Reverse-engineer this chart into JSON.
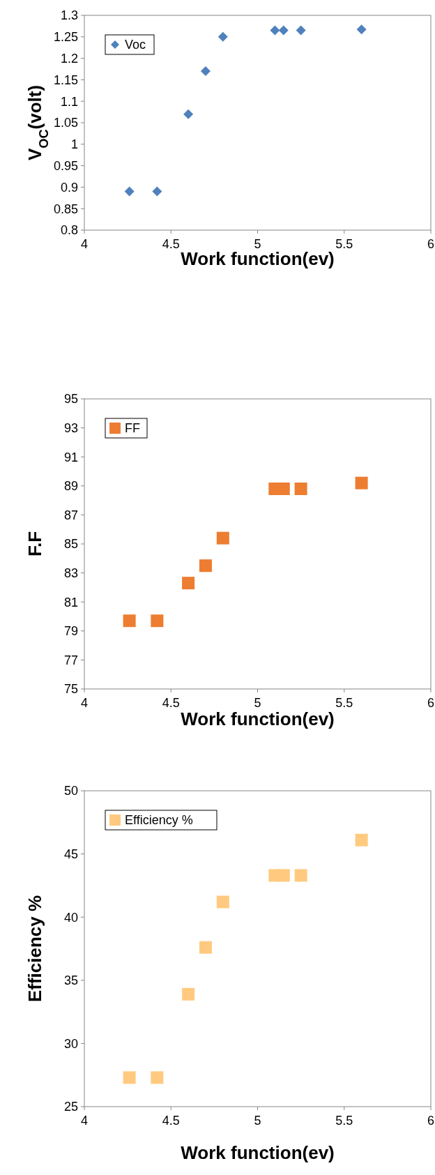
{
  "chart_data": [
    {
      "type": "scatter",
      "xlabel": "Work function(ev)",
      "ylabel": "V$_{OC}$(volt)",
      "x": [
        4.26,
        4.42,
        4.6,
        4.7,
        4.8,
        5.1,
        5.15,
        5.25,
        5.6
      ],
      "xlim": [
        4,
        6
      ],
      "xticks": [
        4,
        4.5,
        5,
        5.5,
        6
      ],
      "ylim": [
        0.8,
        1.3
      ],
      "yticks": [
        0.8,
        0.85,
        0.9,
        0.95,
        1,
        1.05,
        1.1,
        1.15,
        1.2,
        1.25,
        1.3
      ],
      "marker": "diamond",
      "legend": "top left",
      "series": [
        {
          "name": "Voc",
          "color": "#4f81bd",
          "values": [
            0.89,
            0.89,
            1.07,
            1.17,
            1.25,
            1.265,
            1.265,
            1.265,
            1.267
          ]
        }
      ]
    },
    {
      "type": "scatter",
      "xlabel": "Work function(ev)",
      "ylabel": "F.F",
      "x": [
        4.26,
        4.42,
        4.6,
        4.7,
        4.8,
        5.1,
        5.15,
        5.25,
        5.6
      ],
      "xlim": [
        4,
        6
      ],
      "xticks": [
        4,
        4.5,
        5,
        5.5,
        6
      ],
      "ylim": [
        75,
        95
      ],
      "yticks": [
        75,
        77,
        79,
        81,
        83,
        85,
        87,
        89,
        91,
        93,
        95
      ],
      "marker": "square",
      "legend": "top left",
      "series": [
        {
          "name": "FF",
          "color": "#ed7d31",
          "values": [
            79.7,
            79.7,
            82.3,
            83.5,
            85.4,
            88.8,
            88.8,
            88.8,
            89.2
          ]
        }
      ]
    },
    {
      "type": "scatter",
      "xlabel": "Work function(ev)",
      "ylabel": "Efficiency %",
      "x": [
        4.26,
        4.42,
        4.6,
        4.7,
        4.8,
        5.1,
        5.15,
        5.25,
        5.6
      ],
      "xlim": [
        4,
        6
      ],
      "xticks": [
        4,
        4.5,
        5,
        5.5,
        6
      ],
      "ylim": [
        25,
        50
      ],
      "yticks": [
        25,
        30,
        35,
        40,
        45,
        50
      ],
      "marker": "square",
      "legend": "top left",
      "series": [
        {
          "name": "Efficiency %",
          "color": "#ffca7f",
          "values": [
            27.3,
            27.3,
            33.9,
            37.6,
            41.2,
            43.3,
            43.3,
            43.3,
            46.1
          ]
        }
      ]
    }
  ]
}
